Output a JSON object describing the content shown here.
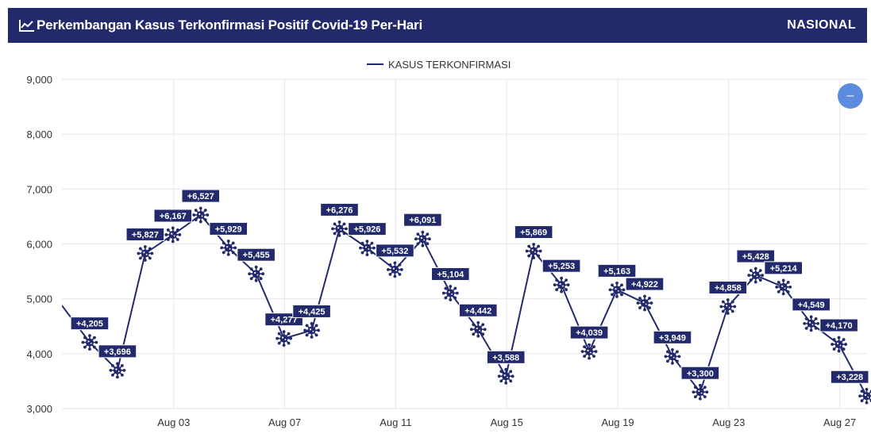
{
  "header": {
    "title": "Perkembangan Kasus Terkonfirmasi Positif Covid-19 Per-Hari",
    "region": "NASIONAL",
    "icon": "line-chart-icon"
  },
  "controls": {
    "collapse_symbol": "–",
    "collapse_icon": "minus-icon"
  },
  "colors": {
    "header_bg": "#232a6b",
    "series": "#232a6b",
    "grid": "#e6e6e6",
    "button": "#5b8ce0"
  },
  "chart_data": {
    "type": "line",
    "title": "Perkembangan Kasus Terkonfirmasi Positif Covid-19 Per-Hari",
    "xlabel": "",
    "ylabel": "",
    "ylim": [
      3000,
      9000
    ],
    "yticks": [
      "3,000",
      "4,000",
      "5,000",
      "6,000",
      "7,000",
      "8,000",
      "9,000"
    ],
    "xticks": [
      "Aug 03",
      "Aug 07",
      "Aug 11",
      "Aug 15",
      "Aug 19",
      "Aug 23",
      "Aug 27"
    ],
    "grid": true,
    "legend_position": "top-center",
    "marker": "virus-icon",
    "series": [
      {
        "name": "KASUS TERKONFIRMASI",
        "x": [
          "Jul 30",
          "Jul 31",
          "Aug 01",
          "Aug 02",
          "Aug 03",
          "Aug 04",
          "Aug 05",
          "Aug 06",
          "Aug 07",
          "Aug 08",
          "Aug 09",
          "Aug 10",
          "Aug 11",
          "Aug 12",
          "Aug 13",
          "Aug 14",
          "Aug 15",
          "Aug 16",
          "Aug 17",
          "Aug 18",
          "Aug 19",
          "Aug 20",
          "Aug 21",
          "Aug 22",
          "Aug 23",
          "Aug 24",
          "Aug 25",
          "Aug 26",
          "Aug 27",
          "Aug 28"
        ],
        "values": [
          4877,
          4205,
          3696,
          5827,
          6167,
          6527,
          5929,
          5455,
          4277,
          4425,
          6276,
          5926,
          5532,
          6091,
          5104,
          4442,
          3588,
          5869,
          5253,
          4039,
          5163,
          4922,
          3949,
          3300,
          4858,
          5428,
          5214,
          4549,
          4170,
          3228
        ],
        "labels": [
          "",
          "+4,205",
          "+3,696",
          "+5,827",
          "+6,167",
          "+6,527",
          "+5,929",
          "+5,455",
          "+4,277",
          "+4,425",
          "+6,276",
          "+5,926",
          "+5,532",
          "+6,091",
          "+5,104",
          "+4,442",
          "+3,588",
          "+5,869",
          "+5,253",
          "+4,039",
          "+5,163",
          "+4,922",
          "+3,949",
          "+3,300",
          "+4,858",
          "+5,428",
          "+5,214",
          "+4,549",
          "+4,170",
          "+3,228"
        ]
      }
    ]
  }
}
